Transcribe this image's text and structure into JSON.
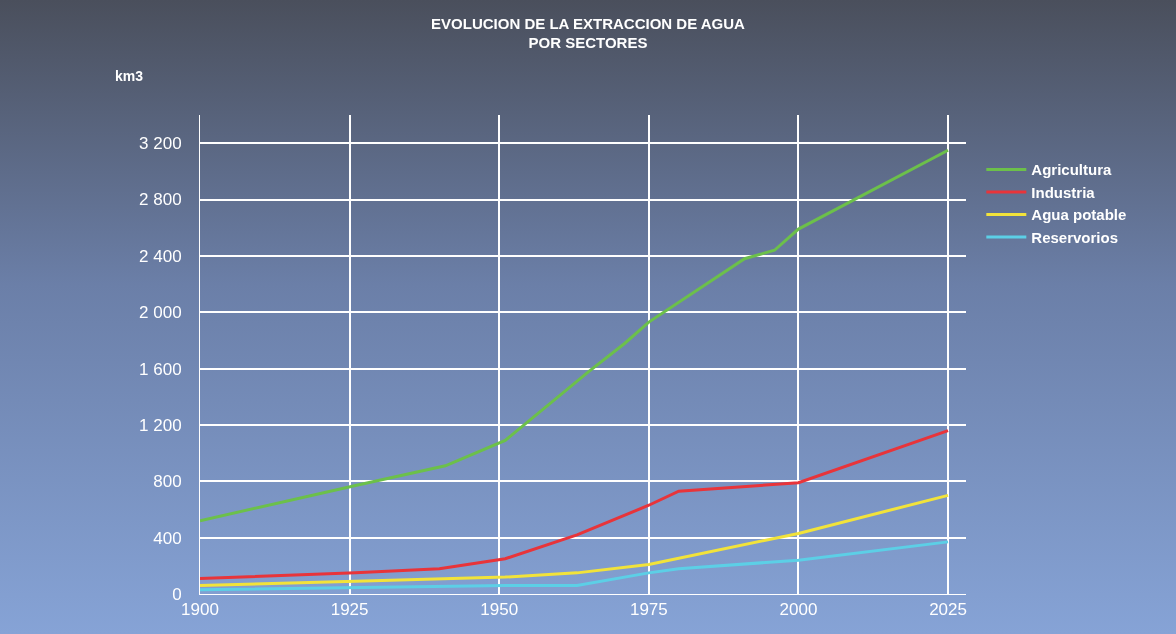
{
  "chart_data": {
    "type": "line",
    "title": "EVOLUCION DE LA EXTRACCION DE AGUA\nPOR SECTORES",
    "ylabel": "km3",
    "xlim": [
      1900,
      2028
    ],
    "xticks": [
      1900,
      1925,
      1950,
      1975,
      2000,
      2025
    ],
    "ylim": [
      0,
      3400
    ],
    "yticks": [
      {
        "value": 0,
        "label": "0"
      },
      {
        "value": 400,
        "label": "400"
      },
      {
        "value": 800,
        "label": "800"
      },
      {
        "value": 1200,
        "label": "1 200"
      },
      {
        "value": 1600,
        "label": "1 600"
      },
      {
        "value": 2000,
        "label": "2 000"
      },
      {
        "value": 2400,
        "label": "2 400"
      },
      {
        "value": 2800,
        "label": "2 800"
      },
      {
        "value": 3200,
        "label": "3 200"
      }
    ],
    "grid": true,
    "legend": "right",
    "marker": "none",
    "line_style": "solid",
    "series": [
      {
        "name": "Agricultura",
        "color": "#6cc04a",
        "x": [
          1900,
          1926,
          1941,
          1951,
          1965,
          1971,
          1975,
          1991,
          1996,
          2000,
          2025
        ],
        "values": [
          520,
          770,
          910,
          1090,
          1580,
          1780,
          1930,
          2380,
          2440,
          2590,
          3150
        ]
      },
      {
        "name": "Industria",
        "color": "#e8343a",
        "x": [
          1900,
          1926,
          1940,
          1951,
          1963,
          1975,
          1980,
          2000,
          2025
        ],
        "values": [
          110,
          150,
          180,
          250,
          420,
          630,
          730,
          790,
          1160
        ]
      },
      {
        "name": "Agua potable",
        "color": "#f2e33a",
        "x": [
          1900,
          1926,
          1951,
          1963,
          1975,
          2000,
          2025
        ],
        "values": [
          60,
          90,
          120,
          150,
          210,
          430,
          700
        ]
      },
      {
        "name": "Reservorios",
        "color": "#5ccfe6",
        "x": [
          1900,
          1951,
          1963,
          1975,
          1980,
          2000,
          2025
        ],
        "values": [
          30,
          60,
          60,
          150,
          180,
          240,
          370
        ]
      }
    ]
  }
}
